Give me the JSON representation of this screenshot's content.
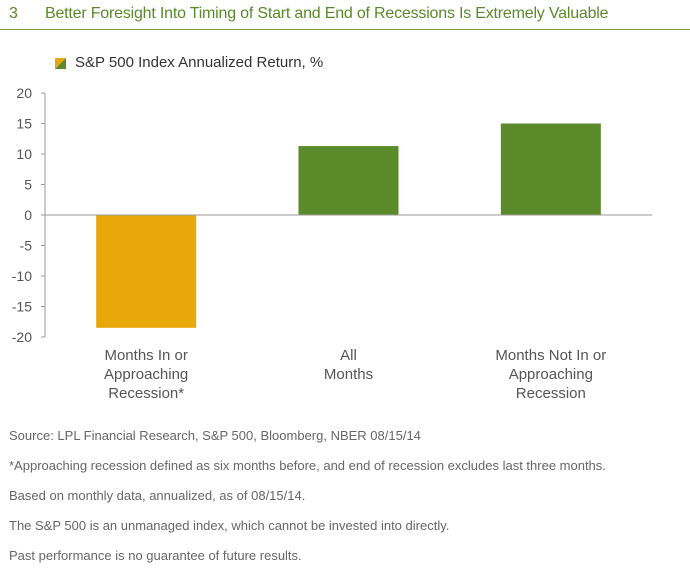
{
  "figure": {
    "number": "3",
    "title": "Better Foresight Into Timing of Start and End of Recessions Is Extremely Valuable"
  },
  "chart_data": {
    "type": "bar",
    "legend": {
      "label": "S&P 500 Index Annualized Return, %",
      "placement": "top-left",
      "colors": [
        "#e8a80c",
        "#5b8a2b"
      ]
    },
    "categories": [
      [
        "Months In or",
        "Approaching",
        "Recession*"
      ],
      [
        "All",
        "Months"
      ],
      [
        "Months Not In or",
        "Approaching",
        "Recession"
      ]
    ],
    "values": [
      -18.5,
      11.3,
      15.0
    ],
    "colors": [
      "#e8a80c",
      "#5b8a2b",
      "#5b8a2b"
    ],
    "ylim": [
      -20,
      20
    ],
    "yticks": [
      20,
      15,
      10,
      5,
      0,
      -5,
      -10,
      -15,
      -20
    ],
    "grid": false
  },
  "footnotes": [
    "Source: LPL Financial Research, S&P 500, Bloomberg, NBER   08/15/14",
    "*Approaching recession defined as six months before, and end of recession excludes last three months.",
    "Based on monthly data, annualized, as of 08/15/14.",
    "The S&P 500 is an unmanaged index, which cannot be invested into directly.",
    "Past performance is no guarantee of future results."
  ]
}
